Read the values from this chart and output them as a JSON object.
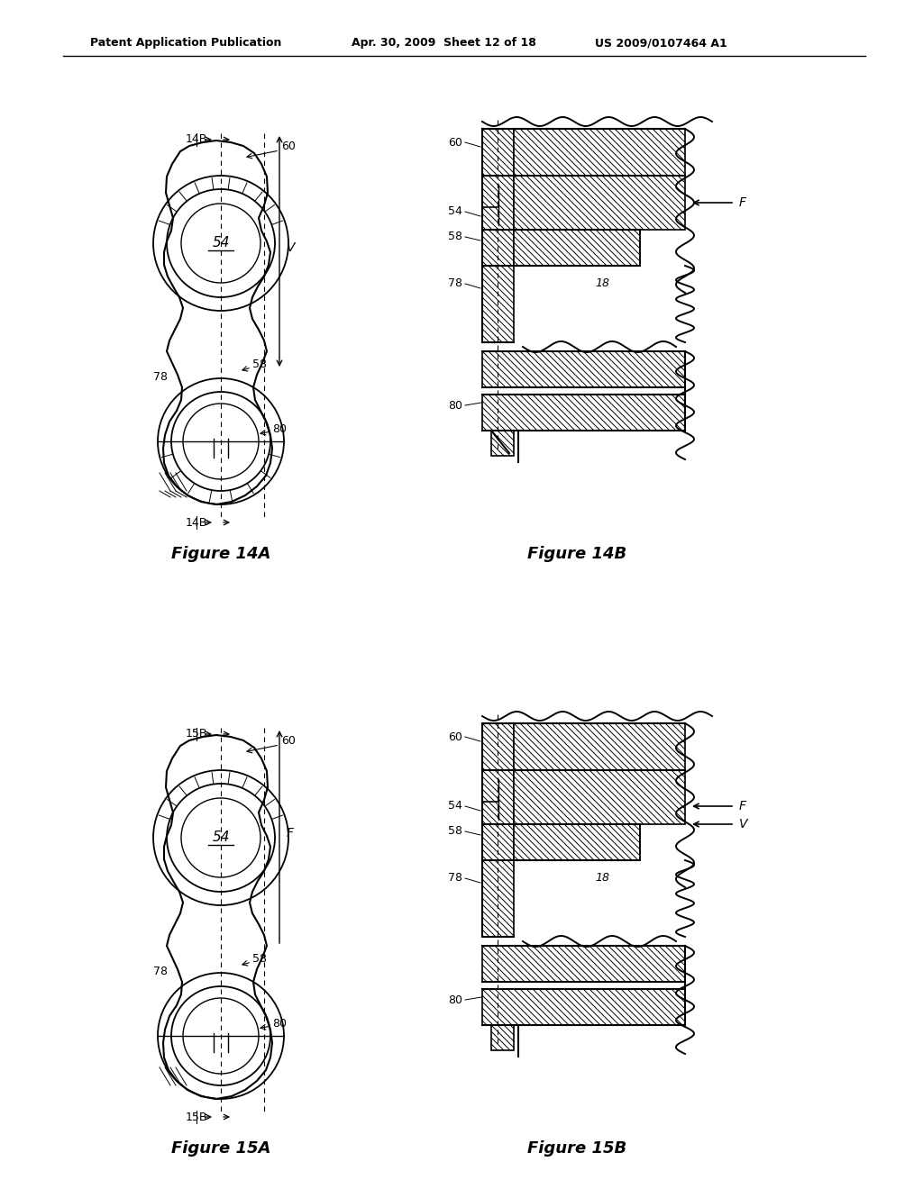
{
  "bg_color": "#ffffff",
  "header_text": "Patent Application Publication",
  "header_date": "Apr. 30, 2009  Sheet 12 of 18",
  "header_patent": "US 2009/0107464 A1",
  "fig14a_title": "Figure 14A",
  "fig14b_title": "Figure 14B",
  "fig15a_title": "Figure 15A",
  "fig15b_title": "Figure 15B",
  "line_color": "#000000",
  "label_fontsize": 9,
  "title_fontsize": 13,
  "header_fontsize": 9
}
